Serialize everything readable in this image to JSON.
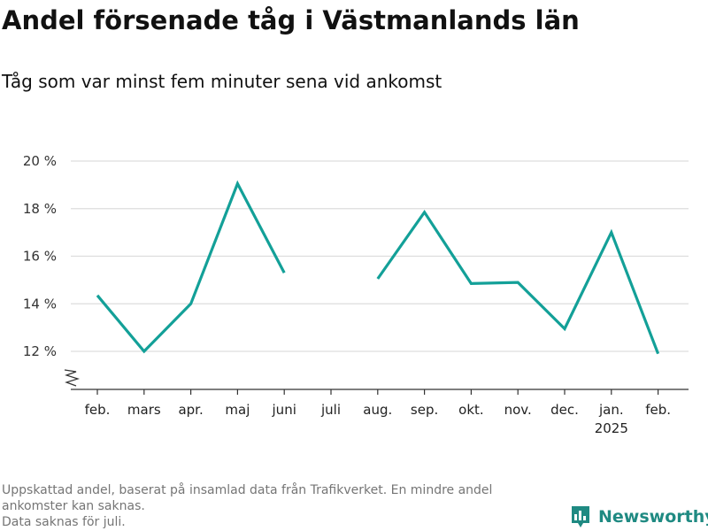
{
  "header": {
    "title": "Andel försenade tåg i Västmanlands län",
    "subtitle": "Tåg som var minst fem minuter sena vid ankomst"
  },
  "footnote": {
    "line1": "Uppskattad andel, baserat på insamlad data från Trafikverket. En mindre andel ankomster kan saknas.",
    "line2": "Data saknas för juli."
  },
  "brand": {
    "name": "Newsworthy",
    "color": "#1f8a82"
  },
  "colors": {
    "line": "#13a098",
    "grid": "#dddddd",
    "axis": "#333333"
  },
  "chart_data": {
    "type": "line",
    "title": "Andel försenade tåg i Västmanlands län",
    "subtitle": "Tåg som var minst fem minuter sena vid ankomst",
    "categories": [
      "feb.",
      "mars",
      "apr.",
      "maj",
      "juni",
      "juli",
      "aug.",
      "sep.",
      "okt.",
      "nov.",
      "dec.",
      "jan.",
      "feb."
    ],
    "category_sublabels": [
      "",
      "",
      "",
      "",
      "",
      "",
      "",
      "",
      "",
      "",
      "",
      "2025",
      ""
    ],
    "series": [
      {
        "values": [
          14.35,
          12.0,
          14.0,
          19.05,
          15.3,
          null,
          15.05,
          17.85,
          14.85,
          14.9,
          12.95,
          17.0,
          11.9
        ]
      }
    ],
    "yticks": [
      12,
      14,
      16,
      18,
      20
    ],
    "ytick_labels": [
      "12 %",
      "14 %",
      "16 %",
      "18 %",
      "20 %"
    ],
    "ylim": [
      10.4,
      20
    ],
    "y_axis_break": true,
    "grid": true,
    "legend": "none",
    "xlabel": "",
    "ylabel": ""
  }
}
